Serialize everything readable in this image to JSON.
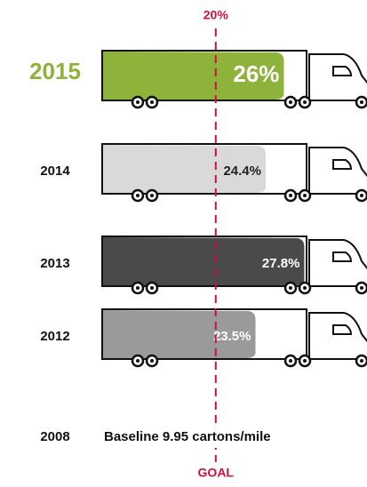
{
  "chart_data": {
    "type": "truck-bar",
    "categories": [
      "2015",
      "2014",
      "2013",
      "2012"
    ],
    "values": [
      26,
      24.4,
      27.8,
      23.5
    ],
    "value_labels": [
      "26%",
      "24.4%",
      "27.8%",
      "23.5%"
    ],
    "colors": [
      "#8db33a",
      "#d9d9d9",
      "#4a4a4a",
      "#9a9a9a"
    ],
    "label_colors": [
      "#ffffff",
      "#222222",
      "#ffffff",
      "#ffffff"
    ],
    "highlight_color": "#8db33a",
    "xlim": [
      10,
      28
    ],
    "goal": {
      "value": 20,
      "label": "20%"
    },
    "goal_caption": "GOAL",
    "goal_color": "#d0103a",
    "baseline": {
      "category": "2008",
      "text": "Baseline 9.95 cartons/mile"
    }
  }
}
